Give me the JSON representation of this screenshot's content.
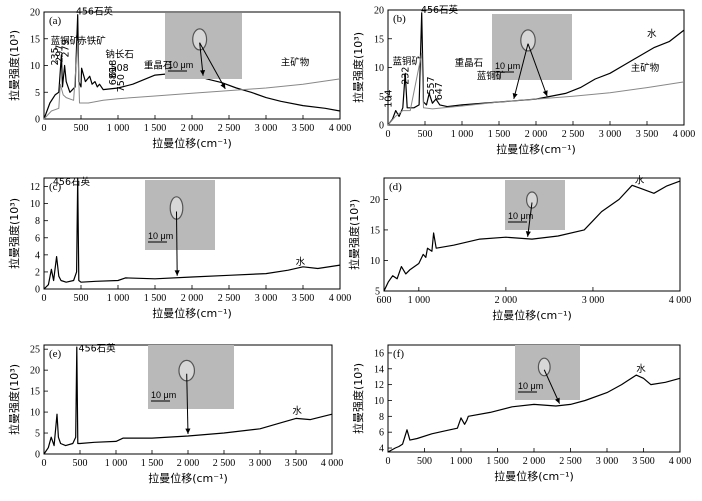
{
  "chart_data": [
    {
      "panel": "(a)",
      "type": "line",
      "xlabel": "拉曼位移(cm⁻¹)",
      "ylabel": "拉曼强度(10³)",
      "xlim": [
        0,
        4000
      ],
      "ylim": [
        0,
        20
      ],
      "xticks": [
        0,
        500,
        1000,
        1500,
        2000,
        2500,
        3000,
        3500,
        4000
      ],
      "xtick_labels": [
        "0",
        "500",
        "1 000",
        "1 500",
        "2 000",
        "2 500",
        "3 000",
        "3 500",
        "4 000"
      ],
      "yticks": [
        0,
        5,
        10,
        15,
        20
      ],
      "ytick_labels": [
        "0",
        "5",
        "10",
        "15",
        "20"
      ],
      "scale_text": "10 μm",
      "series": [
        {
          "color": "#000000",
          "x": [
            0,
            80,
            150,
            200,
            220,
            235,
            250,
            279,
            300,
            350,
            420,
            456,
            470,
            500,
            508,
            560,
            618,
            650,
            689,
            720,
            750,
            800,
            1000,
            1200,
            1500,
            1800,
            2000,
            2200,
            2400,
            2600,
            2800,
            3000,
            3200,
            3500,
            3800,
            4000
          ],
          "y": [
            0,
            3,
            4.5,
            5,
            9,
            12,
            6,
            10,
            7,
            5,
            6,
            19.5,
            7,
            6,
            9.5,
            7,
            8,
            6.5,
            7,
            6,
            6.5,
            5.5,
            5.8,
            6.5,
            8.2,
            8.6,
            8.4,
            7.5,
            6.8,
            5.8,
            5,
            4,
            3.3,
            2.5,
            2,
            1.5
          ]
        },
        {
          "color": "#888888",
          "x": [
            0,
            100,
            200,
            220,
            260,
            300,
            400,
            456,
            480,
            600,
            800,
            1000,
            1500,
            2000,
            2500,
            3000,
            3500,
            4000
          ],
          "y": [
            0,
            1.5,
            2,
            6.5,
            4.5,
            4,
            3.5,
            14.5,
            3,
            3,
            3.5,
            3.8,
            4.3,
            4.8,
            5.3,
            5.8,
            6.5,
            7.5
          ]
        }
      ],
      "annotations": [
        "456石英",
        "蓝铜矿",
        "235",
        "279",
        "赤铁矿",
        "297",
        "508",
        "钠长石",
        "618",
        "689",
        "750",
        "重晶石",
        "主矿物"
      ]
    },
    {
      "panel": "(b)",
      "type": "line",
      "xlabel": "拉曼位移(cm⁻¹)",
      "ylabel": "拉曼强度(10³)",
      "xlim": [
        0,
        4000
      ],
      "ylim": [
        0,
        20
      ],
      "xticks": [
        0,
        500,
        1000,
        1500,
        2000,
        2500,
        3000,
        3500,
        4000
      ],
      "xtick_labels": [
        "0",
        "500",
        "1 000",
        "1 500",
        "2 000",
        "2 500",
        "3 000",
        "3 500",
        "4 000"
      ],
      "yticks": [
        0,
        5,
        10,
        15,
        20
      ],
      "ytick_labels": [
        "0",
        "5",
        "10",
        "15",
        "20"
      ],
      "scale_text": "10 μm",
      "series": [
        {
          "color": "#000000",
          "x": [
            0,
            60,
            104,
            150,
            200,
            232,
            260,
            350,
            420,
            456,
            480,
            520,
            557,
            600,
            647,
            700,
            800,
            1000,
            1500,
            2000,
            2400,
            2600,
            2800,
            3000,
            3200,
            3400,
            3600,
            3800,
            4000
          ],
          "y": [
            0,
            1,
            2.5,
            1.5,
            3,
            9,
            3,
            3,
            3.5,
            19.5,
            4,
            3.5,
            5.5,
            3.8,
            4.5,
            3.5,
            3.2,
            3.5,
            4,
            4.5,
            5.5,
            6.5,
            8,
            9,
            10.5,
            12,
            13.5,
            14.5,
            16.5
          ]
        },
        {
          "color": "#888888",
          "x": [
            0,
            100,
            200,
            300,
            456,
            480,
            600,
            1000,
            1500,
            2000,
            2500,
            3000,
            3500,
            4000
          ],
          "y": [
            0,
            1.5,
            2.5,
            2.5,
            12.5,
            3,
            2.8,
            3.3,
            4,
            4.5,
            5,
            5.6,
            6.5,
            7.5
          ]
        }
      ],
      "annotations": [
        "456石英",
        "蓝铜矿",
        "232",
        "104",
        "重晶石",
        "557",
        "647",
        "蓝铜矿",
        "水",
        "主矿物"
      ]
    },
    {
      "panel": "(c)",
      "type": "line",
      "xlabel": "拉曼位移(cm⁻¹)",
      "ylabel": "拉曼强度(10³)",
      "xlim": [
        0,
        4000
      ],
      "ylim": [
        0,
        13
      ],
      "xticks": [
        0,
        500,
        1000,
        1500,
        2000,
        2500,
        3000,
        3500,
        4000
      ],
      "xtick_labels": [
        "0",
        "500",
        "1 000",
        "1 500",
        "2 000",
        "2 500",
        "3 000",
        "3 500",
        "4 000"
      ],
      "yticks": [
        0,
        2,
        4,
        6,
        8,
        10,
        12
      ],
      "ytick_labels": [
        "0",
        "2",
        "4",
        "6",
        "8",
        "10",
        "12"
      ],
      "scale_text": "10 μm",
      "series": [
        {
          "color": "#000000",
          "x": [
            0,
            60,
            100,
            130,
            170,
            200,
            230,
            300,
            400,
            440,
            456,
            470,
            500,
            700,
            1000,
            1100,
            1500,
            2000,
            2500,
            3000,
            3300,
            3500,
            3700,
            4000
          ],
          "y": [
            0,
            0.5,
            2.3,
            1,
            3.8,
            1.5,
            1,
            0.8,
            1,
            2,
            13,
            1,
            0.8,
            0.9,
            1,
            1.3,
            1.2,
            1.4,
            1.6,
            1.8,
            2.2,
            2.6,
            2.4,
            2.8
          ]
        }
      ],
      "annotations": [
        "456石英",
        "水"
      ]
    },
    {
      "panel": "(d)",
      "type": "line",
      "xlabel": "拉曼位移(cm⁻¹)",
      "ylabel": "拉曼强度(10³)",
      "xlim": [
        600,
        4000
      ],
      "ylim": [
        5,
        23.5
      ],
      "xticks": [
        600,
        1000,
        2000,
        3000,
        4000
      ],
      "xtick_labels": [
        "600",
        "1 000",
        "2 000",
        "3 000",
        "4 000"
      ],
      "yticks": [
        5,
        10,
        15,
        20
      ],
      "ytick_labels": [
        "5",
        "10",
        "15",
        "20"
      ],
      "scale_text": "10 μm",
      "series": [
        {
          "color": "#000000",
          "x": [
            600,
            650,
            700,
            750,
            800,
            850,
            900,
            1000,
            1050,
            1080,
            1100,
            1150,
            1170,
            1200,
            1400,
            1700,
            2000,
            2300,
            2600,
            2900,
            3000,
            3100,
            3300,
            3450,
            3550,
            3700,
            3850,
            4000
          ],
          "y": [
            5,
            6.5,
            7.5,
            7,
            9,
            7.8,
            8.5,
            9.5,
            11,
            10.5,
            12,
            11.5,
            14.5,
            12,
            12.5,
            13.5,
            13.8,
            13.5,
            14,
            15,
            16.5,
            18,
            20,
            22.3,
            21.8,
            21,
            22.2,
            23
          ]
        }
      ],
      "annotations": [
        "水"
      ]
    },
    {
      "panel": "(e)",
      "type": "line",
      "xlabel": "拉曼位移(cm⁻¹)",
      "ylabel": "拉曼强度(10³)",
      "xlim": [
        0,
        4000
      ],
      "ylim": [
        0,
        26
      ],
      "xticks": [
        0,
        500,
        1000,
        1500,
        2000,
        2500,
        3000,
        3500,
        4000
      ],
      "xtick_labels": [
        "0",
        "500",
        "1 000",
        "1 500",
        "2 000",
        "2 500",
        "3 000",
        "3 500",
        "4 000"
      ],
      "yticks": [
        0,
        5,
        10,
        15,
        20,
        25
      ],
      "ytick_labels": [
        "0",
        "5",
        "10",
        "15",
        "20",
        "25"
      ],
      "scale_text": "10 μm",
      "series": [
        {
          "color": "#000000",
          "x": [
            0,
            60,
            100,
            140,
            180,
            200,
            230,
            300,
            400,
            440,
            456,
            470,
            500,
            700,
            1000,
            1100,
            1500,
            2000,
            2500,
            3000,
            3300,
            3500,
            3700,
            4000
          ],
          "y": [
            0,
            1.5,
            4,
            2,
            9.5,
            4,
            2.5,
            2,
            2.5,
            4,
            25.5,
            2.5,
            2.5,
            2.8,
            3,
            3.8,
            3.8,
            4.3,
            5,
            6,
            7.5,
            8.5,
            8.2,
            9.5
          ]
        }
      ],
      "annotations": [
        "456石英",
        "水"
      ]
    },
    {
      "panel": "(f)",
      "type": "line",
      "xlabel": "拉曼位移(cm⁻¹)",
      "ylabel": "拉曼强度(10³)",
      "xlim": [
        0,
        4000
      ],
      "ylim": [
        3.5,
        17
      ],
      "xticks": [
        0,
        500,
        1000,
        1500,
        2000,
        2500,
        3000,
        3500,
        4000
      ],
      "xtick_labels": [
        "0",
        "500",
        "1 000",
        "1 500",
        "2 000",
        "2 500",
        "3 000",
        "3 500",
        "4 000"
      ],
      "yticks": [
        4,
        6,
        8,
        10,
        12,
        14,
        16
      ],
      "ytick_labels": [
        "4",
        "6",
        "8",
        "10",
        "12",
        "14",
        "16"
      ],
      "scale_text": "10 μm",
      "series": [
        {
          "color": "#000000",
          "x": [
            0,
            100,
            150,
            200,
            260,
            300,
            400,
            600,
            800,
            950,
            1000,
            1050,
            1080,
            1100,
            1400,
            1700,
            2000,
            2300,
            2500,
            2700,
            3000,
            3200,
            3400,
            3500,
            3600,
            3800,
            4000
          ],
          "y": [
            3.5,
            4,
            4.2,
            4.5,
            6.3,
            5,
            5.2,
            5.8,
            6.2,
            6.5,
            7.8,
            7,
            7.5,
            8,
            8.5,
            9.2,
            9.5,
            9.3,
            9.5,
            10,
            11,
            12,
            13.2,
            12.8,
            12,
            12.3,
            12.8
          ]
        }
      ],
      "annotations": [
        "水"
      ]
    }
  ]
}
